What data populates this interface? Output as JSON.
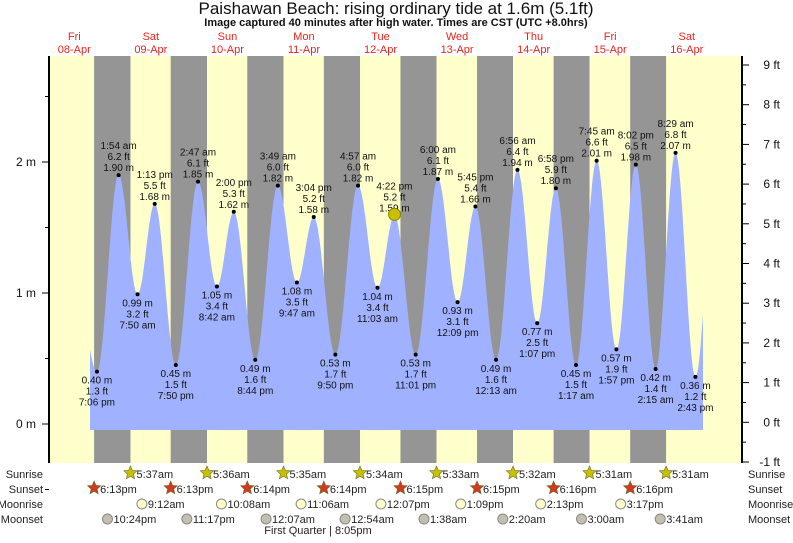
{
  "header": {
    "title": "Paishawan Beach: rising  ordinary tide at 1.6m (5.1ft)",
    "subtitle": "Image captured 40 minutes after high water. Times are CST (UTC +8.0hrs)"
  },
  "colors": {
    "day": "#ffffcc",
    "night": "#959595",
    "water": "#a0b2ff",
    "day_label": "#e8241c",
    "sunrise": "#c8c000",
    "sunset": "#d03a20",
    "moonrise": "#ffffc8",
    "moonset": "#c4c0b0",
    "current": "#c8c000"
  },
  "days": [
    {
      "weekday": "Fri",
      "date": "08-Apr"
    },
    {
      "weekday": "Sat",
      "date": "09-Apr"
    },
    {
      "weekday": "Sun",
      "date": "10-Apr"
    },
    {
      "weekday": "Mon",
      "date": "11-Apr"
    },
    {
      "weekday": "Tue",
      "date": "12-Apr"
    },
    {
      "weekday": "Wed",
      "date": "13-Apr"
    },
    {
      "weekday": "Thu",
      "date": "14-Apr"
    },
    {
      "weekday": "Fri",
      "date": "15-Apr"
    },
    {
      "weekday": "Sat",
      "date": "16-Apr"
    }
  ],
  "row_labels": {
    "sunrise": "Sunrise",
    "sunset": "Sunset",
    "moonrise": "Moonrise",
    "moonset": "Moonset"
  },
  "chart_data": {
    "type": "area",
    "title": "Paishawan Beach: rising  ordinary tide at 1.6m (5.1ft)",
    "left_axis": {
      "unit": "m",
      "ticks": [
        "0 m",
        "1 m",
        "2 m"
      ],
      "range_m": [
        -0.305,
        2.743
      ]
    },
    "right_axis": {
      "unit": "ft",
      "ticks": [
        "-1 ft",
        "0 ft",
        "1 ft",
        "2 ft",
        "3 ft",
        "4 ft",
        "5 ft",
        "6 ft",
        "7 ft",
        "8 ft",
        "9 ft"
      ],
      "range_ft": [
        -1,
        9
      ]
    },
    "current": {
      "day": 4,
      "time": "5:02 pm",
      "height_m": 1.6,
      "height_ft": 5.1
    },
    "extremes": [
      {
        "type": "low",
        "day": 0,
        "time": "7:06 pm",
        "m": "0.40 m",
        "ft": "1.3 ft"
      },
      {
        "type": "high",
        "day": 1,
        "time": "1:54 am",
        "m": "1.90 m",
        "ft": "6.2 ft"
      },
      {
        "type": "low",
        "day": 1,
        "time": "7:50 am",
        "m": "0.99 m",
        "ft": "3.2 ft"
      },
      {
        "type": "high",
        "day": 1,
        "time": "1:13 pm",
        "m": "1.68 m",
        "ft": "5.5 ft"
      },
      {
        "type": "low",
        "day": 1,
        "time": "7:50 pm",
        "m": "0.45 m",
        "ft": "1.5 ft"
      },
      {
        "type": "high",
        "day": 2,
        "time": "2:47 am",
        "m": "1.85 m",
        "ft": "6.1 ft"
      },
      {
        "type": "low",
        "day": 2,
        "time": "8:42 am",
        "m": "1.05 m",
        "ft": "3.4 ft"
      },
      {
        "type": "high",
        "day": 2,
        "time": "2:00 pm",
        "m": "1.62 m",
        "ft": "5.3 ft"
      },
      {
        "type": "low",
        "day": 2,
        "time": "8:44 pm",
        "m": "0.49 m",
        "ft": "1.6 ft"
      },
      {
        "type": "high",
        "day": 3,
        "time": "3:49 am",
        "m": "1.82 m",
        "ft": "6.0 ft"
      },
      {
        "type": "low",
        "day": 3,
        "time": "9:47 am",
        "m": "1.08 m",
        "ft": "3.5 ft"
      },
      {
        "type": "high",
        "day": 3,
        "time": "3:04 pm",
        "m": "1.58 m",
        "ft": "5.2 ft"
      },
      {
        "type": "low",
        "day": 3,
        "time": "9:50 pm",
        "m": "0.53 m",
        "ft": "1.7 ft"
      },
      {
        "type": "high",
        "day": 4,
        "time": "4:57 am",
        "m": "1.82 m",
        "ft": "6.0 ft"
      },
      {
        "type": "low",
        "day": 4,
        "time": "11:03 am",
        "m": "1.04 m",
        "ft": "3.4 ft"
      },
      {
        "type": "high",
        "day": 4,
        "time": "4:22 pm",
        "m": "1.59 m",
        "ft": "5.2 ft"
      },
      {
        "type": "low",
        "day": 4,
        "time": "11:01 pm",
        "m": "0.53 m",
        "ft": "1.7 ft"
      },
      {
        "type": "high",
        "day": 5,
        "time": "6:00 am",
        "m": "1.87 m",
        "ft": "6.1 ft"
      },
      {
        "type": "low",
        "day": 5,
        "time": "12:09 pm",
        "m": "0.93 m",
        "ft": "3.1 ft"
      },
      {
        "type": "high",
        "day": 5,
        "time": "5:45 pm",
        "m": "1.66 m",
        "ft": "5.4 ft"
      },
      {
        "type": "low",
        "day": 6,
        "time": "12:13 am",
        "m": "0.49 m",
        "ft": "1.6 ft"
      },
      {
        "type": "high",
        "day": 6,
        "time": "6:56 am",
        "m": "1.94 m",
        "ft": "6.4 ft"
      },
      {
        "type": "low",
        "day": 6,
        "time": "1:07 pm",
        "m": "0.77 m",
        "ft": "2.5 ft"
      },
      {
        "type": "high",
        "day": 6,
        "time": "6:58 pm",
        "m": "1.80 m",
        "ft": "5.9 ft"
      },
      {
        "type": "low",
        "day": 7,
        "time": "1:17 am",
        "m": "0.45 m",
        "ft": "1.5 ft"
      },
      {
        "type": "high",
        "day": 7,
        "time": "7:45 am",
        "m": "2.01 m",
        "ft": "6.6 ft"
      },
      {
        "type": "low",
        "day": 7,
        "time": "1:57 pm",
        "m": "0.57 m",
        "ft": "1.9 ft"
      },
      {
        "type": "high",
        "day": 7,
        "time": "8:02 pm",
        "m": "1.98 m",
        "ft": "6.5 ft"
      },
      {
        "type": "low",
        "day": 8,
        "time": "2:15 am",
        "m": "0.42 m",
        "ft": "1.4 ft"
      },
      {
        "type": "high",
        "day": 8,
        "time": "8:29 am",
        "m": "2.07 m",
        "ft": "6.8 ft"
      },
      {
        "type": "low",
        "day": 8,
        "time": "2:43 pm",
        "m": "0.36 m",
        "ft": "1.2 ft"
      }
    ]
  },
  "sunrise": [
    {
      "day": 1,
      "time": "5:37am"
    },
    {
      "day": 2,
      "time": "5:36am"
    },
    {
      "day": 3,
      "time": "5:35am"
    },
    {
      "day": 4,
      "time": "5:34am"
    },
    {
      "day": 5,
      "time": "5:33am"
    },
    {
      "day": 6,
      "time": "5:32am"
    },
    {
      "day": 7,
      "time": "5:31am"
    },
    {
      "day": 8,
      "time": "5:31am"
    }
  ],
  "sunset": [
    {
      "day": 0,
      "time": "6:13pm"
    },
    {
      "day": 1,
      "time": "6:13pm"
    },
    {
      "day": 2,
      "time": "6:14pm"
    },
    {
      "day": 3,
      "time": "6:14pm"
    },
    {
      "day": 4,
      "time": "6:15pm"
    },
    {
      "day": 5,
      "time": "6:15pm"
    },
    {
      "day": 6,
      "time": "6:16pm"
    },
    {
      "day": 7,
      "time": "6:16pm"
    }
  ],
  "moonrise": [
    {
      "day": 1,
      "time": "9:12am"
    },
    {
      "day": 2,
      "time": "10:08am"
    },
    {
      "day": 3,
      "time": "11:06am"
    },
    {
      "day": 4,
      "time": "12:07pm"
    },
    {
      "day": 5,
      "time": "1:09pm"
    },
    {
      "day": 6,
      "time": "2:13pm"
    },
    {
      "day": 7,
      "time": "3:17pm"
    }
  ],
  "moonset": [
    {
      "day": 0,
      "time": "10:24pm"
    },
    {
      "day": 1,
      "time": "11:17pm"
    },
    {
      "day": 3,
      "time": "12:07am"
    },
    {
      "day": 4,
      "time": "12:54am"
    },
    {
      "day": 5,
      "time": "1:38am"
    },
    {
      "day": 6,
      "time": "2:20am"
    },
    {
      "day": 7,
      "time": "3:00am"
    },
    {
      "day": 8,
      "time": "3:41am"
    }
  ],
  "moon_phase": {
    "label": "First Quarter | 8:05pm"
  }
}
